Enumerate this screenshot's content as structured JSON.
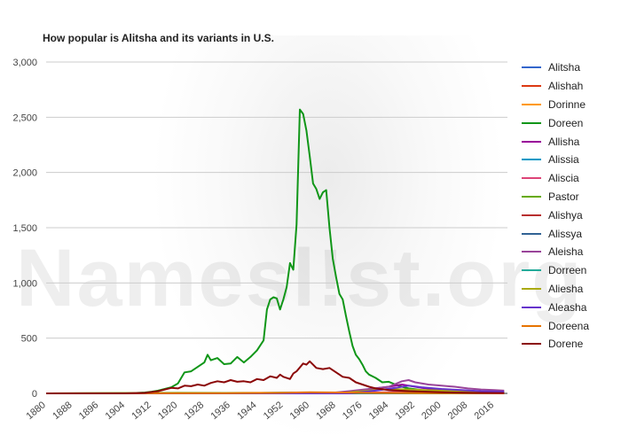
{
  "chart_data": {
    "type": "line",
    "title": "How popular is Alitsha and its variants in U.S.",
    "watermark": "Namesl!st.org",
    "xlabel": "",
    "ylabel": "",
    "xlim": [
      1880,
      2020
    ],
    "ylim": [
      0,
      3000
    ],
    "yticks": [
      {
        "value": 0,
        "label": "0"
      },
      {
        "value": 500,
        "label": "500"
      },
      {
        "value": 1000,
        "label": "1,000"
      },
      {
        "value": 1500,
        "label": "1,500"
      },
      {
        "value": 2000,
        "label": "2,000"
      },
      {
        "value": 2500,
        "label": "2,500"
      },
      {
        "value": 3000,
        "label": "3,000"
      }
    ],
    "xticks": [
      "1880",
      "1888",
      "1896",
      "1904",
      "1912",
      "1920",
      "1928",
      "1936",
      "1944",
      "1952",
      "1960",
      "1968",
      "1976",
      "1984",
      "1992",
      "2000",
      "2008",
      "2016"
    ],
    "grid": true,
    "legend_position": "right",
    "series": [
      {
        "name": "Alitsha",
        "color": "#3366cc",
        "points": [
          [
            1880,
            0
          ],
          [
            2000,
            0
          ],
          [
            2008,
            5
          ],
          [
            2019,
            0
          ]
        ]
      },
      {
        "name": "Alishah",
        "color": "#dc3912",
        "points": [
          [
            1880,
            0
          ],
          [
            1990,
            0
          ],
          [
            2000,
            5
          ],
          [
            2010,
            10
          ],
          [
            2019,
            5
          ]
        ]
      },
      {
        "name": "Dorinne",
        "color": "#ff9900",
        "points": [
          [
            1880,
            0
          ],
          [
            1920,
            2
          ],
          [
            1940,
            5
          ],
          [
            1960,
            5
          ],
          [
            1980,
            2
          ],
          [
            2019,
            0
          ]
        ]
      },
      {
        "name": "Doreen",
        "color": "#109618",
        "points": [
          [
            1880,
            0
          ],
          [
            1900,
            0
          ],
          [
            1906,
            2
          ],
          [
            1910,
            8
          ],
          [
            1912,
            15
          ],
          [
            1914,
            25
          ],
          [
            1916,
            40
          ],
          [
            1918,
            55
          ],
          [
            1920,
            90
          ],
          [
            1922,
            190
          ],
          [
            1924,
            200
          ],
          [
            1926,
            240
          ],
          [
            1928,
            280
          ],
          [
            1929,
            350
          ],
          [
            1930,
            300
          ],
          [
            1932,
            320
          ],
          [
            1934,
            265
          ],
          [
            1936,
            270
          ],
          [
            1938,
            330
          ],
          [
            1940,
            280
          ],
          [
            1942,
            330
          ],
          [
            1944,
            390
          ],
          [
            1946,
            480
          ],
          [
            1947,
            760
          ],
          [
            1948,
            850
          ],
          [
            1949,
            870
          ],
          [
            1950,
            860
          ],
          [
            1951,
            760
          ],
          [
            1952,
            850
          ],
          [
            1953,
            960
          ],
          [
            1954,
            1180
          ],
          [
            1955,
            1120
          ],
          [
            1956,
            1530
          ],
          [
            1957,
            2570
          ],
          [
            1958,
            2530
          ],
          [
            1959,
            2380
          ],
          [
            1960,
            2150
          ],
          [
            1961,
            1900
          ],
          [
            1962,
            1850
          ],
          [
            1963,
            1760
          ],
          [
            1964,
            1820
          ],
          [
            1965,
            1840
          ],
          [
            1966,
            1500
          ],
          [
            1967,
            1220
          ],
          [
            1968,
            1050
          ],
          [
            1969,
            900
          ],
          [
            1970,
            850
          ],
          [
            1971,
            700
          ],
          [
            1972,
            560
          ],
          [
            1973,
            430
          ],
          [
            1974,
            350
          ],
          [
            1975,
            310
          ],
          [
            1976,
            260
          ],
          [
            1977,
            200
          ],
          [
            1978,
            170
          ],
          [
            1980,
            140
          ],
          [
            1982,
            100
          ],
          [
            1984,
            105
          ],
          [
            1986,
            80
          ],
          [
            1988,
            60
          ],
          [
            1990,
            45
          ],
          [
            1994,
            30
          ],
          [
            2000,
            20
          ],
          [
            2008,
            10
          ],
          [
            2019,
            5
          ]
        ]
      },
      {
        "name": "Allisha",
        "color": "#990099",
        "points": [
          [
            1880,
            0
          ],
          [
            1968,
            0
          ],
          [
            1974,
            20
          ],
          [
            1980,
            45
          ],
          [
            1984,
            60
          ],
          [
            1988,
            80
          ],
          [
            1990,
            70
          ],
          [
            1994,
            50
          ],
          [
            2000,
            30
          ],
          [
            2008,
            15
          ],
          [
            2019,
            10
          ]
        ]
      },
      {
        "name": "Alissia",
        "color": "#0099c6",
        "points": [
          [
            1880,
            0
          ],
          [
            1975,
            0
          ],
          [
            1985,
            10
          ],
          [
            1995,
            25
          ],
          [
            2000,
            15
          ],
          [
            2010,
            8
          ],
          [
            2019,
            5
          ]
        ]
      },
      {
        "name": "Aliscia",
        "color": "#dd4477",
        "points": [
          [
            1880,
            0
          ],
          [
            1970,
            0
          ],
          [
            1980,
            8
          ],
          [
            1990,
            15
          ],
          [
            2000,
            8
          ],
          [
            2019,
            2
          ]
        ]
      },
      {
        "name": "Pastor",
        "color": "#66aa00",
        "points": [
          [
            1880,
            0
          ],
          [
            1900,
            3
          ],
          [
            1920,
            5
          ],
          [
            1940,
            4
          ],
          [
            1960,
            3
          ],
          [
            1980,
            2
          ],
          [
            2000,
            3
          ],
          [
            2019,
            2
          ]
        ]
      },
      {
        "name": "Alishya",
        "color": "#b82e2e",
        "points": [
          [
            1880,
            0
          ],
          [
            1985,
            0
          ],
          [
            1992,
            10
          ],
          [
            2000,
            15
          ],
          [
            2010,
            8
          ],
          [
            2019,
            4
          ]
        ]
      },
      {
        "name": "Alissya",
        "color": "#316395",
        "points": [
          [
            1880,
            0
          ],
          [
            1988,
            0
          ],
          [
            1996,
            8
          ],
          [
            2004,
            10
          ],
          [
            2012,
            6
          ],
          [
            2019,
            4
          ]
        ]
      },
      {
        "name": "Aleisha",
        "color": "#994499",
        "points": [
          [
            1880,
            0
          ],
          [
            1965,
            0
          ],
          [
            1972,
            20
          ],
          [
            1978,
            40
          ],
          [
            1984,
            60
          ],
          [
            1988,
            110
          ],
          [
            1990,
            120
          ],
          [
            1992,
            100
          ],
          [
            1996,
            80
          ],
          [
            2000,
            70
          ],
          [
            2004,
            60
          ],
          [
            2008,
            45
          ],
          [
            2012,
            35
          ],
          [
            2016,
            30
          ],
          [
            2019,
            25
          ]
        ]
      },
      {
        "name": "Dorreen",
        "color": "#22aa99",
        "points": [
          [
            1880,
            0
          ],
          [
            1940,
            2
          ],
          [
            1955,
            8
          ],
          [
            1965,
            5
          ],
          [
            1980,
            2
          ],
          [
            2019,
            0
          ]
        ]
      },
      {
        "name": "Aliesha",
        "color": "#aaaa11",
        "points": [
          [
            1880,
            0
          ],
          [
            1968,
            0
          ],
          [
            1976,
            20
          ],
          [
            1984,
            40
          ],
          [
            1990,
            35
          ],
          [
            2000,
            25
          ],
          [
            2010,
            15
          ],
          [
            2019,
            10
          ]
        ]
      },
      {
        "name": "Aleasha",
        "color": "#6633cc",
        "points": [
          [
            1880,
            0
          ],
          [
            1972,
            0
          ],
          [
            1980,
            25
          ],
          [
            1986,
            50
          ],
          [
            1990,
            70
          ],
          [
            1994,
            55
          ],
          [
            2000,
            40
          ],
          [
            2006,
            30
          ],
          [
            2012,
            20
          ],
          [
            2019,
            15
          ]
        ]
      },
      {
        "name": "Doreena",
        "color": "#e67300",
        "points": [
          [
            1880,
            0
          ],
          [
            1930,
            2
          ],
          [
            1950,
            5
          ],
          [
            1960,
            10
          ],
          [
            1970,
            8
          ],
          [
            1980,
            4
          ],
          [
            2019,
            0
          ]
        ]
      },
      {
        "name": "Dorene",
        "color": "#8b0707",
        "points": [
          [
            1880,
            0
          ],
          [
            1904,
            0
          ],
          [
            1910,
            5
          ],
          [
            1914,
            20
          ],
          [
            1916,
            35
          ],
          [
            1918,
            50
          ],
          [
            1920,
            45
          ],
          [
            1922,
            70
          ],
          [
            1924,
            65
          ],
          [
            1926,
            80
          ],
          [
            1928,
            70
          ],
          [
            1930,
            95
          ],
          [
            1932,
            110
          ],
          [
            1934,
            100
          ],
          [
            1936,
            120
          ],
          [
            1938,
            105
          ],
          [
            1940,
            110
          ],
          [
            1942,
            100
          ],
          [
            1944,
            130
          ],
          [
            1946,
            120
          ],
          [
            1948,
            155
          ],
          [
            1950,
            140
          ],
          [
            1951,
            170
          ],
          [
            1952,
            150
          ],
          [
            1954,
            130
          ],
          [
            1955,
            180
          ],
          [
            1956,
            200
          ],
          [
            1958,
            270
          ],
          [
            1959,
            260
          ],
          [
            1960,
            290
          ],
          [
            1961,
            260
          ],
          [
            1962,
            230
          ],
          [
            1964,
            220
          ],
          [
            1966,
            230
          ],
          [
            1968,
            190
          ],
          [
            1970,
            150
          ],
          [
            1972,
            140
          ],
          [
            1974,
            100
          ],
          [
            1976,
            80
          ],
          [
            1978,
            60
          ],
          [
            1980,
            45
          ],
          [
            1984,
            30
          ],
          [
            1990,
            20
          ],
          [
            2000,
            10
          ],
          [
            2010,
            5
          ],
          [
            2019,
            3
          ]
        ]
      }
    ]
  }
}
